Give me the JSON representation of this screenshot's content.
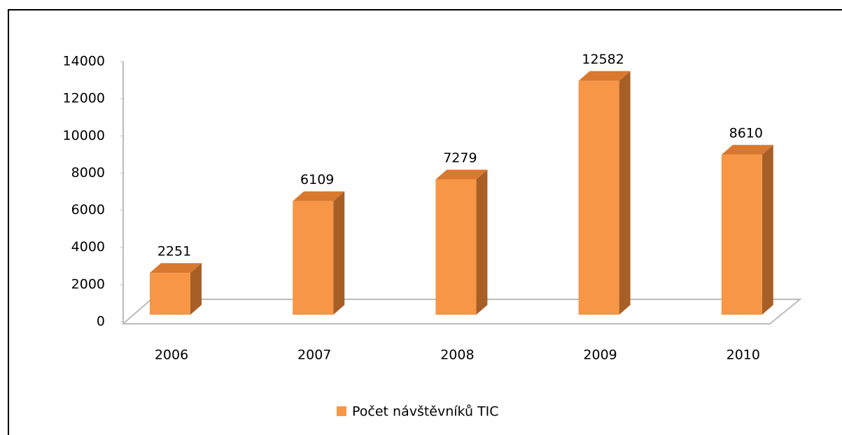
{
  "chart_data": {
    "type": "bar3d",
    "categories": [
      "2006",
      "2007",
      "2008",
      "2009",
      "2010"
    ],
    "series": [
      {
        "name": "Počet návštěvníků TIC",
        "color": "#f79646",
        "values": [
          2251,
          6109,
          7279,
          12582,
          8610
        ]
      }
    ],
    "ylim": [
      0,
      14000
    ],
    "yticks": [
      0,
      2000,
      4000,
      6000,
      8000,
      10000,
      12000,
      14000
    ],
    "legend": "bottom"
  }
}
